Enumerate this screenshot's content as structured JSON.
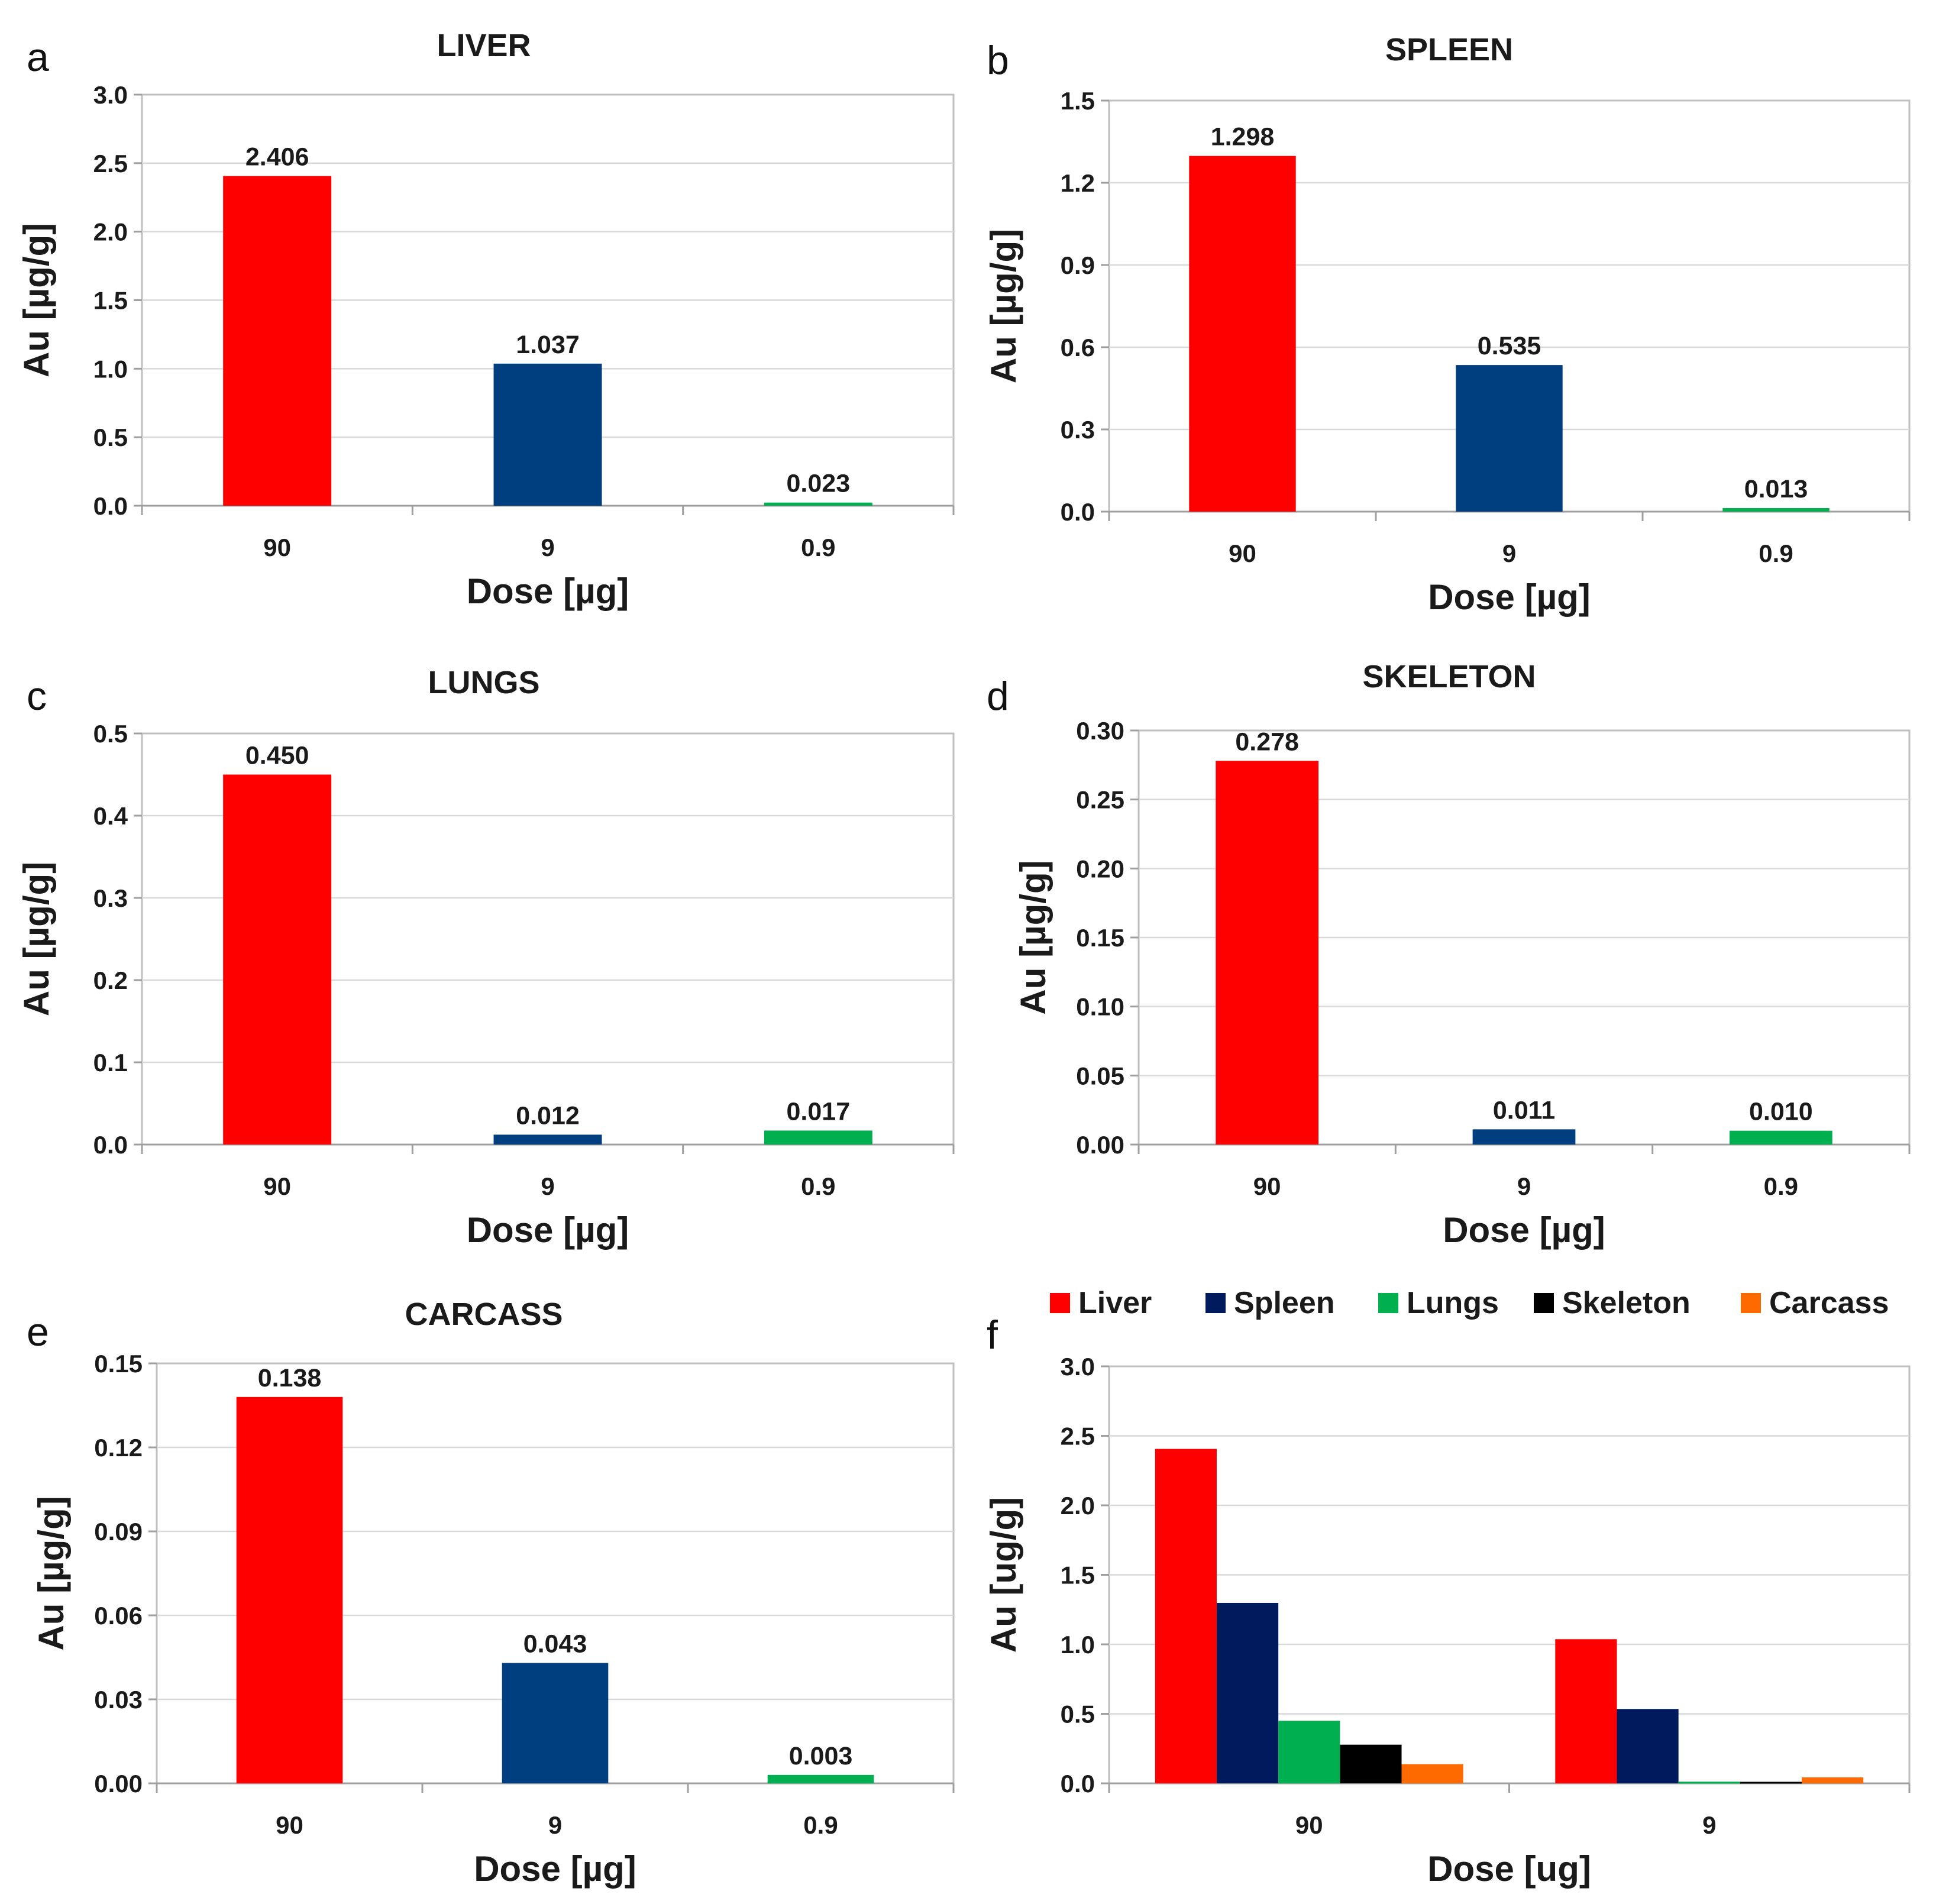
{
  "chart_data": [
    {
      "panel": "a",
      "type": "bar",
      "title": "LIVER",
      "xlabel": "Dose [µg]",
      "ylabel": "Au [µg/g]",
      "categories": [
        "90",
        "9",
        "0.9"
      ],
      "values": [
        2.406,
        1.037,
        0.023
      ],
      "value_labels": [
        "2.406",
        "1.037",
        "0.023"
      ],
      "colors": [
        "#ff0000",
        "#003f7f",
        "#00b050"
      ],
      "ylim": [
        0,
        3.0
      ],
      "yticks": [
        "0.0",
        "0.5",
        "1.0",
        "1.5",
        "2.0",
        "2.5",
        "3.0"
      ],
      "grid": true
    },
    {
      "panel": "b",
      "type": "bar",
      "title": "SPLEEN",
      "xlabel": "Dose [µg]",
      "ylabel": "Au [µg/g]",
      "categories": [
        "90",
        "9",
        "0.9"
      ],
      "values": [
        1.298,
        0.535,
        0.013
      ],
      "value_labels": [
        "1.298",
        "0.535",
        "0.013"
      ],
      "colors": [
        "#ff0000",
        "#003f7f",
        "#00b050"
      ],
      "ylim": [
        0,
        1.5
      ],
      "yticks": [
        "0.0",
        "0.3",
        "0.6",
        "0.9",
        "1.2",
        "1.5"
      ],
      "grid": true
    },
    {
      "panel": "c",
      "type": "bar",
      "title": "LUNGS",
      "xlabel": "Dose [µg]",
      "ylabel": "Au [µg/g]",
      "categories": [
        "90",
        "9",
        "0.9"
      ],
      "values": [
        0.45,
        0.012,
        0.017
      ],
      "value_labels": [
        "0.450",
        "0.012",
        "0.017"
      ],
      "colors": [
        "#ff0000",
        "#003f7f",
        "#00b050"
      ],
      "ylim": [
        0,
        0.5
      ],
      "yticks": [
        "0.0",
        "0.1",
        "0.2",
        "0.3",
        "0.4",
        "0.5"
      ],
      "grid": true
    },
    {
      "panel": "d",
      "type": "bar",
      "title": "SKELETON",
      "xlabel": "Dose [µg]",
      "ylabel": "Au [µg/g]",
      "categories": [
        "90",
        "9",
        "0.9"
      ],
      "values": [
        0.278,
        0.011,
        0.01
      ],
      "value_labels": [
        "0.278",
        "0.011",
        "0.010"
      ],
      "colors": [
        "#ff0000",
        "#003f7f",
        "#00b050"
      ],
      "ylim": [
        0,
        0.3
      ],
      "yticks": [
        "0.00",
        "0.05",
        "0.10",
        "0.15",
        "0.20",
        "0.25",
        "0.30"
      ],
      "grid": true
    },
    {
      "panel": "e",
      "type": "bar",
      "title": "CARCASS",
      "xlabel": "Dose [µg]",
      "ylabel": "Au [µg/g]",
      "categories": [
        "90",
        "9",
        "0.9"
      ],
      "values": [
        0.138,
        0.043,
        0.003
      ],
      "value_labels": [
        "0.138",
        "0.043",
        "0.003"
      ],
      "colors": [
        "#ff0000",
        "#003f7f",
        "#00b050"
      ],
      "ylim": [
        0,
        0.15
      ],
      "yticks": [
        "0.00",
        "0.03",
        "0.06",
        "0.09",
        "0.12",
        "0.15"
      ],
      "grid": true
    },
    {
      "panel": "f",
      "type": "bar",
      "title": "",
      "xlabel": "Dose [ug]",
      "ylabel": "Au [ug/g]",
      "categories": [
        "90",
        "9"
      ],
      "series": [
        {
          "name": "Liver",
          "color": "#ff0000",
          "values": [
            2.406,
            1.037
          ]
        },
        {
          "name": "Spleen",
          "color": "#001a5e",
          "values": [
            1.298,
            0.535
          ]
        },
        {
          "name": "Lungs",
          "color": "#00b050",
          "values": [
            0.45,
            0.012
          ]
        },
        {
          "name": "Skeleton",
          "color": "#000000",
          "values": [
            0.278,
            0.011
          ]
        },
        {
          "name": "Carcass",
          "color": "#ff6a00",
          "values": [
            0.138,
            0.043
          ]
        }
      ],
      "ylim": [
        0,
        3.0
      ],
      "yticks": [
        "0.0",
        "0.5",
        "1.0",
        "1.5",
        "2.0",
        "2.5",
        "3.0"
      ],
      "legend": "top",
      "grid": true
    }
  ]
}
